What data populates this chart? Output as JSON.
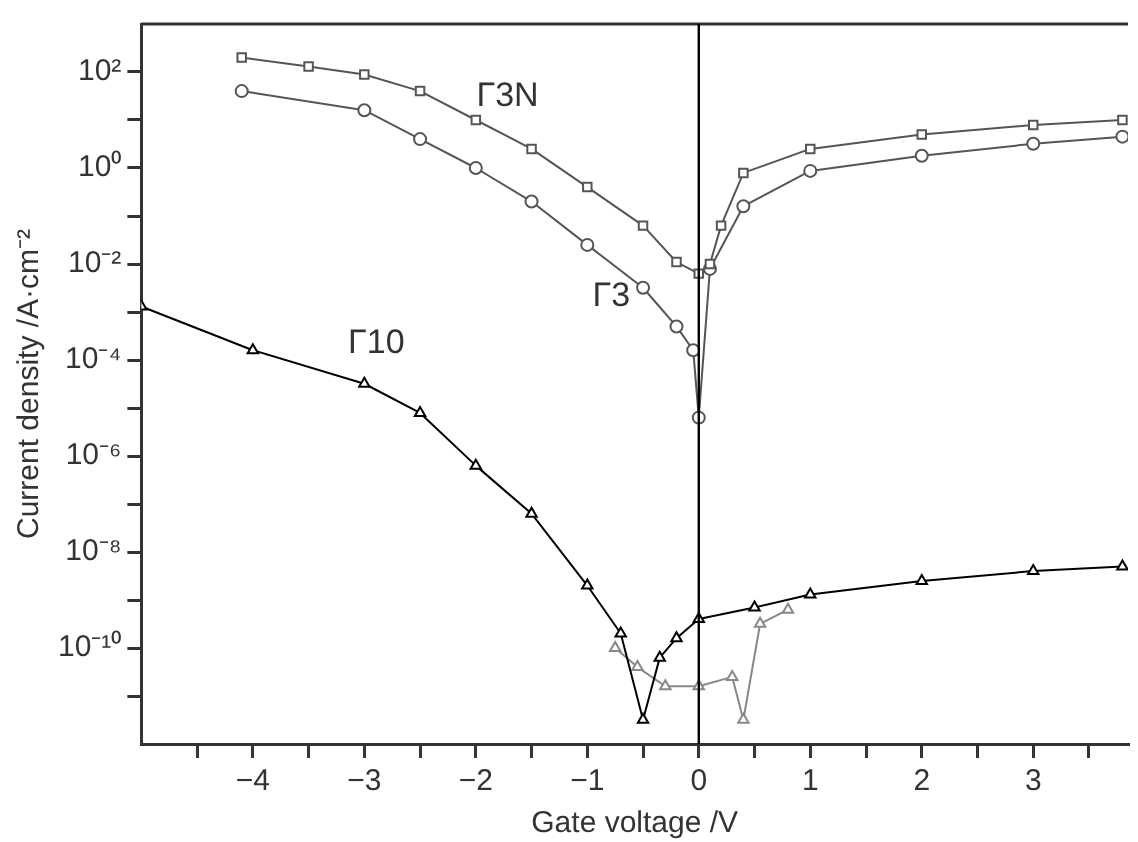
{
  "chart_data": {
    "type": "line",
    "xlabel": "Gate voltage /V",
    "ylabel": "Current density /A·cm⁻²",
    "log": "y",
    "grid": false,
    "legend": false,
    "line_style": "solid",
    "xlim": [
      -5,
      3.85
    ],
    "xticks": [
      {
        "value": -4.5,
        "label": null
      },
      {
        "value": -4,
        "label": "−4"
      },
      {
        "value": -3.5,
        "label": null
      },
      {
        "value": -3,
        "label": "−3"
      },
      {
        "value": -2.5,
        "label": null
      },
      {
        "value": -2,
        "label": "−2"
      },
      {
        "value": -1.5,
        "label": null
      },
      {
        "value": -1,
        "label": "−1"
      },
      {
        "value": -0.5,
        "label": null
      },
      0,
      {
        "value": 0.5,
        "label": null
      },
      1,
      {
        "value": 1.5,
        "label": null
      },
      2,
      {
        "value": 2.5,
        "label": null
      },
      3,
      {
        "value": 3.5,
        "label": null
      }
    ],
    "ylim": [
      1e-12,
      1000
    ],
    "yticks": [
      {
        "value": 1e-11,
        "label": null
      },
      {
        "value": 1e-10,
        "label": "10⁻¹⁰"
      },
      {
        "value": 1e-09,
        "label": null
      },
      {
        "value": 1e-08,
        "label": "10⁻⁸"
      },
      {
        "value": 1e-07,
        "label": null
      },
      {
        "value": 1e-06,
        "label": "10⁻⁶"
      },
      {
        "value": 1e-05,
        "label": null
      },
      {
        "value": 0.0001,
        "label": "10⁻⁴"
      },
      {
        "value": 0.001,
        "label": null
      },
      {
        "value": 0.01,
        "label": "10⁻²"
      },
      {
        "value": 0.1,
        "label": null
      },
      {
        "value": 1,
        "label": "10⁰"
      },
      {
        "value": 10,
        "label": null
      },
      {
        "value": 100,
        "label": "10²"
      }
    ],
    "series": [
      {
        "name": "Γ3N",
        "color": "#555555",
        "marker": "square",
        "x": [
          -4.1,
          -3.5,
          -3,
          -2.5,
          -2,
          -1.5,
          -1,
          -0.5,
          -0.2,
          0,
          0.1,
          0.2,
          0.4,
          1,
          2,
          3,
          3.8
        ],
        "values": [
          200,
          130,
          89,
          40,
          10,
          2.5,
          0.4,
          0.063,
          0.011,
          0.0063,
          0.01,
          0.063,
          0.79,
          2.5,
          5,
          7.9,
          10
        ]
      },
      {
        "name": "Γ3",
        "color": "#555555",
        "marker": "circle",
        "x": [
          -4.1,
          -3,
          -2.5,
          -2,
          -1.5,
          -1,
          -0.5,
          -0.2,
          -0.05,
          0,
          0.1,
          0.4,
          1,
          2,
          3,
          3.8
        ],
        "values": [
          40,
          16,
          4,
          1,
          0.2,
          0.025,
          0.0032,
          0.0005,
          0.00016,
          6.3e-06,
          0.0079,
          0.16,
          0.87,
          1.8,
          3.2,
          4.5
        ]
      },
      {
        "name": "Γ10",
        "color": "#000000",
        "marker": "triangle",
        "x": [
          -5,
          -4,
          -3,
          -2.5,
          -2,
          -1.5,
          -1,
          -0.7,
          -0.5,
          -0.35,
          -0.2,
          0,
          0.5,
          1,
          2,
          3,
          3.8
        ],
        "values": [
          0.0013,
          0.00016,
          3.2e-05,
          7.9e-06,
          6.3e-07,
          6.3e-08,
          2e-09,
          2e-10,
          3.2e-12,
          6.3e-11,
          1.6e-10,
          4e-10,
          7e-10,
          1.3e-09,
          2.5e-09,
          4e-09,
          5e-09
        ]
      },
      {
        "color": "#888888",
        "marker": "triangle",
        "x": [
          -0.75,
          -0.55,
          -0.3,
          0,
          0.3,
          0.4,
          0.55,
          0.8
        ],
        "values": [
          1e-10,
          4e-11,
          1.6e-11,
          1.6e-11,
          2.5e-11,
          3.2e-12,
          3.2e-10,
          6.3e-10
        ]
      }
    ],
    "ref_lines": [
      {
        "axis": "x",
        "value": 0,
        "color": "#000000"
      }
    ]
  }
}
